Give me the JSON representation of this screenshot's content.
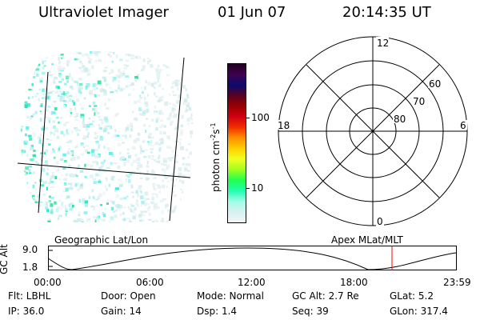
{
  "header": {
    "instrument": "Ultraviolet Imager",
    "date": "01 Jun 07",
    "time": "20:14:35 UT"
  },
  "colorbar": {
    "unit_label": "photon cm",
    "unit_exp1": "-2",
    "unit_s": "s",
    "unit_exp2": "-1",
    "tick_labels": [
      "100",
      "10"
    ],
    "colors": [
      "#200020",
      "#400050",
      "#0a0a6e",
      "#5a0020",
      "#9a0000",
      "#d00010",
      "#f03000",
      "#ff9000",
      "#ffd000",
      "#f0ff20",
      "#a0ff20",
      "#20ff50",
      "#20ffb0",
      "#a0ffe8",
      "#d8f0f0",
      "#f2f6f6"
    ]
  },
  "polar": {
    "labels": {
      "top": "12",
      "bottom": "0",
      "left": "18",
      "right": "6",
      "r60": "60",
      "r70": "70",
      "r80": "80"
    }
  },
  "panels": {
    "left_label": "Geographic Lat/Lon",
    "right_label": "Apex  MLat/MLT"
  },
  "timeline": {
    "y_label": "GC Alt",
    "y_ticks": [
      "9.0",
      "1.8"
    ],
    "x_ticks": [
      "00:00",
      "06:00",
      "12:00",
      "18:00",
      "23:59"
    ],
    "marker_color": "#ff0000"
  },
  "status": {
    "flt": "Flt: LBHL",
    "door": "Door: Open",
    "mode": "Mode: Normal",
    "gc_alt": "GC Alt: 2.7 Re",
    "glat": "GLat:  5.2",
    "ip": "IP: 36.0",
    "gain": "Gain: 14",
    "dsp": "Dsp:    1.4",
    "seq": "Seq: 39",
    "glon": "GLon: 317.4"
  }
}
